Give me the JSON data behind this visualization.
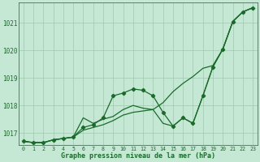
{
  "background_color": "#c5e8d5",
  "grid_color": "#a0c8b0",
  "line_color": "#1a6b2a",
  "ylim": [
    1016.55,
    1021.75
  ],
  "y_ticks": [
    1017,
    1018,
    1019,
    1020,
    1021
  ],
  "xlabel": "Graphe pression niveau de la mer (hPa)",
  "series": {
    "line1": [
      1016.7,
      1016.65,
      1016.65,
      1016.75,
      1016.8,
      1016.85,
      1017.1,
      1017.2,
      1017.3,
      1017.45,
      1017.65,
      1017.75,
      1017.8,
      1017.85,
      1018.1,
      1018.5,
      1018.8,
      1019.05,
      1019.35,
      1019.45,
      1020.05,
      1021.05,
      1021.4,
      1021.55
    ],
    "line2_marked": [
      1016.7,
      1016.65,
      1016.65,
      1016.75,
      1016.8,
      1016.85,
      1017.2,
      1017.3,
      1017.55,
      1018.35,
      1018.45,
      1018.6,
      1018.55,
      1018.35,
      1017.75,
      1017.25,
      1017.55,
      1017.35,
      1018.35,
      1019.4,
      1020.05,
      1021.05,
      1021.4,
      1021.55
    ],
    "line3": [
      1016.7,
      1016.65,
      1016.65,
      1016.75,
      1016.8,
      1016.85,
      1017.55,
      1017.35,
      1017.5,
      1017.6,
      1017.85,
      1018.0,
      1017.9,
      1017.85,
      1017.35,
      1017.25,
      1017.55,
      1017.35,
      1018.35,
      1019.4,
      1020.05,
      1021.05,
      1021.4,
      1021.55
    ]
  }
}
